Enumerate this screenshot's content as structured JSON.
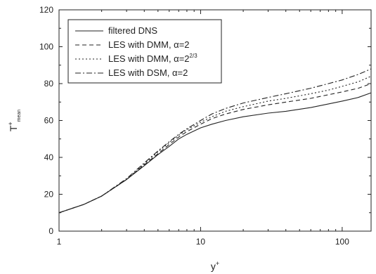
{
  "chart_data": {
    "type": "line",
    "title": "",
    "xlabel": "y",
    "xlabel_sup": "+",
    "ylabel": "T",
    "ylabel_sup": "+",
    "ylabel_sub": "mean",
    "xscale": "log",
    "xlim": [
      1,
      160
    ],
    "ylim": [
      0,
      120
    ],
    "xticks": [
      1,
      10,
      100
    ],
    "xtick_labels": [
      "1",
      "10",
      "100"
    ],
    "yticks": [
      0,
      20,
      40,
      60,
      80,
      100,
      120
    ],
    "ytick_labels": [
      "0",
      "20",
      "40",
      "60",
      "80",
      "100",
      "120"
    ],
    "grid": false,
    "legend_position": "top-left",
    "series": [
      {
        "name": "filtered DNS",
        "name_parts": [
          "filtered DNS"
        ],
        "style": "solid",
        "x": [
          1,
          1.5,
          2,
          3,
          4,
          5,
          6,
          7,
          8,
          10,
          12,
          15,
          20,
          30,
          40,
          60,
          80,
          100,
          130,
          160
        ],
        "y": [
          10,
          14.5,
          19,
          28,
          35.5,
          41.5,
          46,
          50,
          52.5,
          56,
          58,
          60,
          62,
          64,
          65,
          67,
          69,
          70.5,
          72.5,
          75
        ]
      },
      {
        "name": "LES with DMM, α=2",
        "name_parts": [
          "LES with DMM, α=2"
        ],
        "style": "dashed",
        "x": [
          1,
          1.5,
          2,
          3,
          4,
          5,
          6,
          7,
          8,
          10,
          12,
          15,
          20,
          30,
          40,
          60,
          80,
          100,
          130,
          160
        ],
        "y": [
          10,
          14.5,
          19,
          28,
          36,
          42,
          47,
          51,
          54,
          58,
          61,
          63.5,
          66,
          68.5,
          70,
          72,
          74,
          75.5,
          77.5,
          80
        ]
      },
      {
        "name": "LES with DMM, α=2^(2/3)",
        "name_parts": [
          "LES with DMM, α=2",
          "2/3"
        ],
        "style": "dotted",
        "x": [
          1,
          1.5,
          2,
          3,
          4,
          5,
          6,
          7,
          8,
          10,
          12,
          15,
          20,
          30,
          40,
          60,
          80,
          100,
          130,
          160
        ],
        "y": [
          10,
          14.5,
          19,
          28,
          36.5,
          43,
          48,
          52,
          55,
          59,
          62,
          65,
          67.5,
          70.5,
          72,
          74.5,
          76.5,
          78.5,
          81,
          84
        ]
      },
      {
        "name": "LES with DSM, α=2",
        "name_parts": [
          "LES with DSM, α=2"
        ],
        "style": "dashdot",
        "x": [
          1,
          1.5,
          2,
          3,
          4,
          5,
          6,
          7,
          8,
          10,
          12,
          15,
          20,
          30,
          40,
          60,
          80,
          100,
          130,
          160
        ],
        "y": [
          10,
          14.5,
          19,
          28.5,
          37,
          43.5,
          48.5,
          52.5,
          55.5,
          60,
          63.5,
          66.5,
          69.5,
          72.5,
          74.5,
          77.5,
          80,
          82,
          85,
          88
        ]
      }
    ]
  }
}
